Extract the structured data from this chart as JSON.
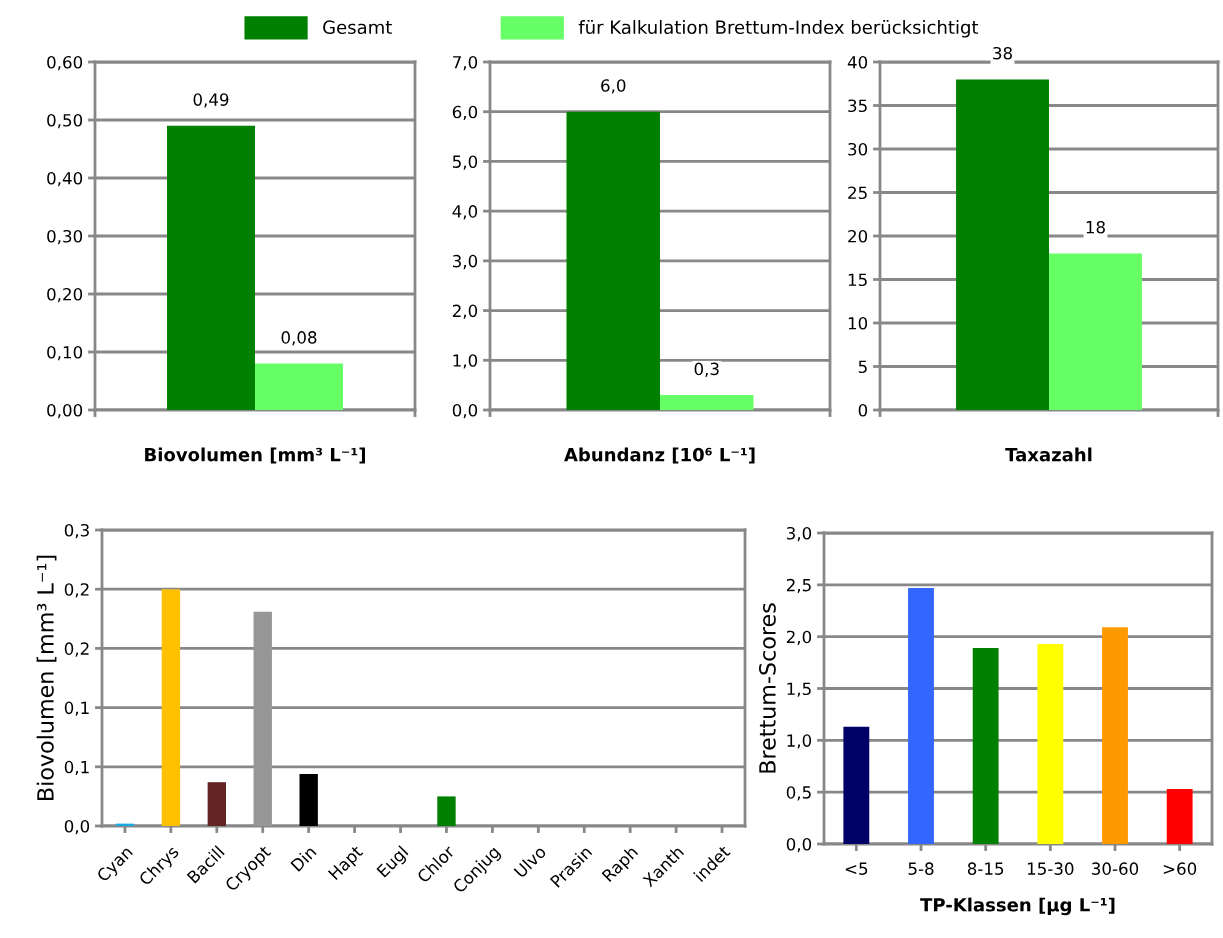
{
  "chart_data": [
    {
      "type": "bar",
      "categories": [
        null
      ],
      "xlabel": "Biovolumen [mm³ L⁻¹]",
      "legend": "top",
      "grid": "y",
      "tick_labels": "y",
      "ylim": [
        0,
        0.6
      ],
      "yticks": [
        {
          "value": 0,
          "label": "0,00"
        },
        {
          "value": 0.1,
          "label": "0,10"
        },
        {
          "value": 0.2,
          "label": "0,20"
        },
        {
          "value": 0.3,
          "label": "0,30"
        },
        {
          "value": 0.4,
          "label": "0,40"
        },
        {
          "value": 0.5,
          "label": "0,50"
        },
        {
          "value": 0.6,
          "label": "0,60"
        }
      ],
      "series": [
        {
          "name": "Gesamt",
          "color": "#008000",
          "values": [
            0.49
          ],
          "value_labels": [
            "0,49"
          ]
        },
        {
          "name": "für Kalkulation Brettum-Index berücksichtigt",
          "color": "#66ff66",
          "values": [
            0.08
          ],
          "value_labels": [
            "0,08"
          ]
        }
      ]
    },
    {
      "type": "bar",
      "categories": [
        null
      ],
      "xlabel": "Abundanz [10⁶ L⁻¹]",
      "grid": "y",
      "tick_labels": "y",
      "ylim": [
        0,
        7
      ],
      "yticks": [
        {
          "value": 0,
          "label": "0,0"
        },
        {
          "value": 1,
          "label": "1,0"
        },
        {
          "value": 2,
          "label": "2,0"
        },
        {
          "value": 3,
          "label": "3,0"
        },
        {
          "value": 4,
          "label": "4,0"
        },
        {
          "value": 5,
          "label": "5,0"
        },
        {
          "value": 6,
          "label": "6,0"
        },
        {
          "value": 7,
          "label": "7,0"
        }
      ],
      "series": [
        {
          "color": "#008000",
          "values": [
            6.0
          ],
          "value_labels": [
            "6,0"
          ]
        },
        {
          "color": "#66ff66",
          "values": [
            0.3
          ],
          "value_labels": [
            "0,3"
          ]
        }
      ]
    },
    {
      "type": "bar",
      "categories": [
        null
      ],
      "xlabel": "Taxazahl",
      "grid": "y",
      "tick_labels": "y",
      "ylim": [
        0,
        40
      ],
      "yticks": [
        0,
        5,
        10,
        15,
        20,
        25,
        30,
        35,
        40
      ],
      "series": [
        {
          "color": "#008000",
          "values": [
            38
          ],
          "value_labels": [
            "38"
          ]
        },
        {
          "color": "#66ff66",
          "values": [
            18
          ],
          "value_labels": [
            "18"
          ]
        }
      ]
    },
    {
      "type": "bar",
      "categories": [
        "Cyan",
        "Chrys",
        "Bacill",
        "Cryopt",
        "Din",
        "Hapt",
        "Eugl",
        "Chlor",
        "Conjug",
        "Ulvo",
        "Prasin",
        "Raph",
        "Xanth",
        "indet"
      ],
      "ylabel": "Biovolumen [mm³ L⁻¹]",
      "grid": "y",
      "ylim": [
        0,
        0.25
      ],
      "yticks": [
        {
          "value": 0,
          "label": "0,0"
        },
        {
          "value": 0.05,
          "label": "0,1"
        },
        {
          "value": 0.1,
          "label": "0,1"
        },
        {
          "value": 0.15,
          "label": "0,2"
        },
        {
          "value": 0.2,
          "label": "0,2"
        },
        {
          "value": 0.25,
          "label": "0,3"
        }
      ],
      "values": [
        0.002,
        0.2,
        0.037,
        0.181,
        0.044,
        0,
        0,
        0.025,
        0,
        0,
        0,
        0,
        0,
        0
      ],
      "colors": [
        "#1ca9e0",
        "#ffc000",
        "#632523",
        "#969696",
        "#000000",
        "#969696",
        "#969696",
        "#008000",
        "#969696",
        "#969696",
        "#969696",
        "#969696",
        "#969696",
        "#969696"
      ]
    },
    {
      "type": "bar",
      "categories": [
        "<5",
        "5-8",
        "8-15",
        "15-30",
        "30-60",
        ">60"
      ],
      "xlabel": "TP-Klassen [µg L⁻¹]",
      "ylabel": "Brettum-Scores",
      "grid": "y",
      "ylim": [
        0,
        3
      ],
      "yticks": [
        {
          "value": 0,
          "label": "0,0"
        },
        {
          "value": 0.5,
          "label": "0,5"
        },
        {
          "value": 1,
          "label": "1,0"
        },
        {
          "value": 1.5,
          "label": "1,5"
        },
        {
          "value": 2,
          "label": "2,0"
        },
        {
          "value": 2.5,
          "label": "2,5"
        },
        {
          "value": 3,
          "label": "3,0"
        }
      ],
      "values": [
        1.13,
        2.47,
        1.89,
        1.93,
        2.09,
        0.53
      ],
      "colors": [
        "#000066",
        "#3366ff",
        "#008000",
        "#ffff00",
        "#ff9900",
        "#ff0000"
      ]
    }
  ]
}
